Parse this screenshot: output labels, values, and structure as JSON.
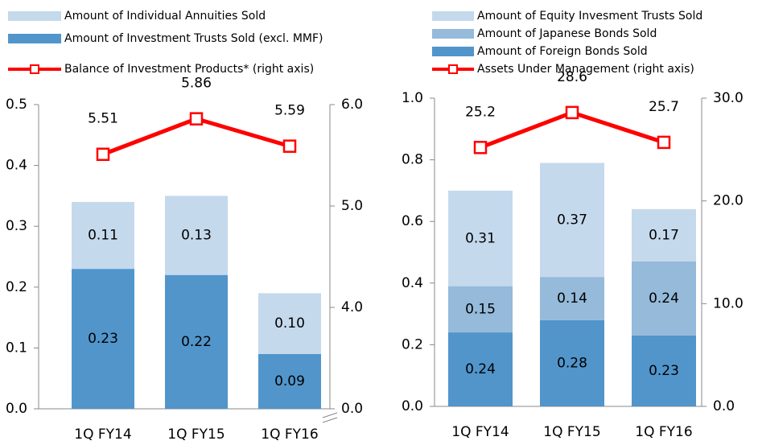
{
  "chart_data": [
    {
      "type": "bar",
      "categories": [
        "1Q FY14",
        "1Q FY15",
        "1Q FY16"
      ],
      "series": [
        {
          "name": "Amount of Investment Trusts Sold (excl. MMF)",
          "color": "#5195cb",
          "values": [
            0.23,
            0.22,
            0.09
          ]
        },
        {
          "name": "Amount of Individual Annuities Sold",
          "color": "#c5d9ed",
          "values": [
            0.11,
            0.13,
            0.1
          ],
          "value_labels": [
            "0.11",
            "0.13",
            "0.10"
          ]
        },
        {
          "name": "Balance of Investment Products* (right axis)",
          "type": "line",
          "axis": "y2",
          "color": "#ff0000",
          "values": [
            5.51,
            5.86,
            5.59
          ]
        }
      ],
      "ylim": [
        0,
        0.5
      ],
      "yticks": [
        {
          "value": 0,
          "label": "0.0"
        },
        0.1,
        0.2,
        0.3,
        0.4,
        0.5
      ],
      "y2lim": [
        0,
        6
      ],
      "y2_break": [
        0,
        3
      ],
      "y2ticks": [
        {
          "value": 0,
          "label": "0.0"
        },
        {
          "value": 4,
          "label": "4.0"
        },
        {
          "value": 5,
          "label": "5.0"
        },
        {
          "value": 6,
          "label": "6.0"
        }
      ]
    },
    {
      "type": "bar",
      "categories": [
        "1Q FY14",
        "1Q FY15",
        "1Q FY16"
      ],
      "series": [
        {
          "name": "Amount of Foreign Bonds Sold",
          "color": "#5195cb",
          "values": [
            0.24,
            0.28,
            0.23
          ]
        },
        {
          "name": "Amount of Japanese Bonds Sold",
          "color": "#95bada",
          "values": [
            0.15,
            0.14,
            0.24
          ]
        },
        {
          "name": "Amount of Equity Invesment Trusts Sold",
          "color": "#c5d9ed",
          "values": [
            0.31,
            0.37,
            0.17
          ]
        },
        {
          "name": "Assets Under Management (right axis)",
          "type": "line",
          "axis": "y2",
          "color": "#ff0000",
          "values": [
            25.2,
            28.6,
            25.7
          ]
        }
      ],
      "ylim": [
        0,
        1.0
      ],
      "yticks": [
        {
          "value": 0,
          "label": "0.0"
        },
        0.2,
        0.4,
        0.6,
        0.8,
        {
          "value": 1.0,
          "label": "1.0"
        }
      ],
      "y2lim": [
        0,
        30
      ],
      "y2ticks": [
        {
          "value": 0,
          "label": "0.0"
        },
        {
          "value": 10,
          "label": "10.0"
        },
        {
          "value": 20,
          "label": "20.0"
        },
        {
          "value": 30,
          "label": "30.0"
        }
      ]
    }
  ]
}
